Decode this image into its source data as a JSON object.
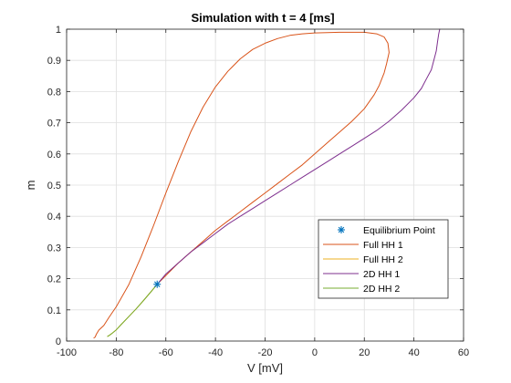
{
  "chart_data": {
    "type": "line",
    "title": "Simulation with t = 4 [ms]",
    "xlabel": "V [mV]",
    "ylabel": "m",
    "xlim": [
      -100,
      60
    ],
    "ylim": [
      0,
      1
    ],
    "xticks": [
      "-100",
      "-80",
      "-60",
      "-40",
      "-20",
      "0",
      "20",
      "40",
      "60"
    ],
    "yticks": [
      "0",
      "0.1",
      "0.2",
      "0.3",
      "0.4",
      "0.5",
      "0.6",
      "0.7",
      "0.8",
      "0.9",
      "1"
    ],
    "grid": true,
    "legend_position": "lower-right",
    "equilibrium": {
      "name": "Equilibrium Point",
      "x": -63.5,
      "y": 0.182,
      "color": "#0072bd",
      "marker": "asterisk"
    },
    "series": [
      {
        "name": "Full HH 1",
        "color": "#d95319",
        "x": [
          -63.5,
          -60,
          -55,
          -50,
          -45,
          -40,
          -35,
          -30,
          -25,
          -20,
          -15,
          -10,
          -5,
          0,
          5,
          10,
          15,
          20,
          24,
          26,
          28,
          29,
          30,
          29.5,
          28,
          25,
          20,
          10,
          0,
          -5,
          -10,
          -15,
          -20,
          -25,
          -30,
          -35,
          -40,
          -45,
          -50,
          -55,
          -60,
          -65,
          -70,
          -75,
          -80,
          -83,
          -85,
          -87,
          -88,
          -88.5,
          -89
        ],
        "y": [
          0.182,
          0.21,
          0.25,
          0.285,
          0.32,
          0.355,
          0.385,
          0.415,
          0.445,
          0.475,
          0.505,
          0.535,
          0.565,
          0.6,
          0.635,
          0.67,
          0.705,
          0.745,
          0.79,
          0.82,
          0.86,
          0.89,
          0.925,
          0.955,
          0.975,
          0.985,
          0.99,
          0.99,
          0.988,
          0.985,
          0.98,
          0.97,
          0.955,
          0.935,
          0.905,
          0.865,
          0.815,
          0.75,
          0.67,
          0.575,
          0.475,
          0.37,
          0.27,
          0.18,
          0.11,
          0.075,
          0.05,
          0.035,
          0.022,
          0.013,
          0.01
        ]
      },
      {
        "name": "Full HH 2",
        "color": "#edb120",
        "x": [
          -63.5,
          -66,
          -69,
          -72,
          -75,
          -78,
          -80,
          -81.5,
          -82.5,
          -83.5
        ],
        "y": [
          0.182,
          0.158,
          0.13,
          0.103,
          0.078,
          0.053,
          0.036,
          0.026,
          0.02,
          0.015
        ]
      },
      {
        "name": "2D HH 1",
        "color": "#7e2f8e",
        "x": [
          -63.5,
          -60,
          -55,
          -50,
          -45,
          -40,
          -35,
          -30,
          -25,
          -20,
          -15,
          -10,
          -5,
          0,
          5,
          10,
          15,
          20,
          25,
          30,
          35,
          40,
          43,
          45,
          47,
          48,
          49,
          49.5,
          50,
          50.4
        ],
        "y": [
          0.182,
          0.215,
          0.25,
          0.285,
          0.315,
          0.345,
          0.375,
          0.4,
          0.425,
          0.45,
          0.475,
          0.5,
          0.525,
          0.55,
          0.575,
          0.6,
          0.625,
          0.65,
          0.675,
          0.705,
          0.74,
          0.78,
          0.81,
          0.84,
          0.87,
          0.9,
          0.93,
          0.96,
          0.985,
          1.0
        ]
      },
      {
        "name": "2D HH 2",
        "color": "#77ac30",
        "x": [
          -63.5,
          -66,
          -69,
          -72,
          -75,
          -78,
          -80,
          -81.5,
          -82.5,
          -83.5
        ],
        "y": [
          0.182,
          0.158,
          0.13,
          0.103,
          0.078,
          0.053,
          0.036,
          0.026,
          0.02,
          0.015
        ]
      }
    ]
  }
}
